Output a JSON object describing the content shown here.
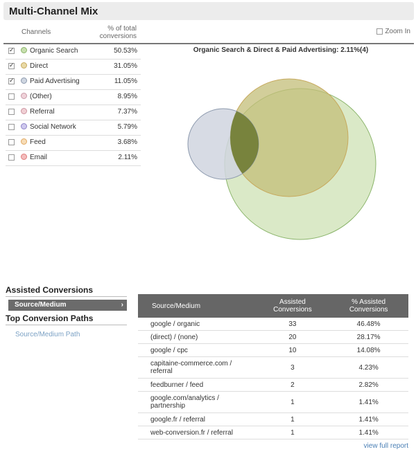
{
  "title": "Multi-Channel Mix",
  "channels_header": {
    "name": "Channels",
    "pct_line1": "% of total",
    "pct_line2": "conversions"
  },
  "zoom_label": "Zoom In",
  "channels": [
    {
      "name": "Organic Search",
      "pct": "50.53%",
      "checked": true,
      "color": "#c8dfae",
      "border": "#8ab46a"
    },
    {
      "name": "Direct",
      "pct": "31.05%",
      "checked": true,
      "color": "#e8d9a6",
      "border": "#c7a95d"
    },
    {
      "name": "Paid Advertising",
      "pct": "11.05%",
      "checked": true,
      "color": "#cfd6e1",
      "border": "#8c99ad"
    },
    {
      "name": "(Other)",
      "pct": "8.95%",
      "checked": false,
      "color": "#efd2d9",
      "border": "#c99aa8"
    },
    {
      "name": "Referral",
      "pct": "7.37%",
      "checked": false,
      "color": "#f0cfd4",
      "border": "#cc94a0"
    },
    {
      "name": "Social Network",
      "pct": "5.79%",
      "checked": false,
      "color": "#cfc9ee",
      "border": "#8f84c8"
    },
    {
      "name": "Feed",
      "pct": "3.68%",
      "checked": false,
      "color": "#f7dcb6",
      "border": "#e0a963"
    },
    {
      "name": "Email",
      "pct": "2.11%",
      "checked": false,
      "color": "#f3bcbc",
      "border": "#e07b7b"
    }
  ],
  "venn_title": "Organic Search & Direct & Paid Advertising: 2.11%(4)",
  "venn_colors": {
    "organic": "#8ab46a",
    "direct": "#c7a95d",
    "paid": "#8c99ad",
    "overlap": "#6e7a2c"
  },
  "assisted_heading": "Assisted Conversions",
  "nav_active": "Source/Medium",
  "paths_heading": "Top Conversion Paths",
  "nav_link": "Source/Medium Path",
  "table": {
    "headers": [
      "Source/Medium",
      "Assisted Conversions",
      "% Assisted Conversions"
    ],
    "rows": [
      {
        "source": "google / organic",
        "assisted": "33",
        "pct": "46.48%"
      },
      {
        "source": "(direct) / (none)",
        "assisted": "20",
        "pct": "28.17%"
      },
      {
        "source": "google / cpc",
        "assisted": "10",
        "pct": "14.08%"
      },
      {
        "source": "capitaine-commerce.com / referral",
        "assisted": "3",
        "pct": "4.23%"
      },
      {
        "source": "feedburner / feed",
        "assisted": "2",
        "pct": "2.82%"
      },
      {
        "source": "google.com/analytics / partnership",
        "assisted": "1",
        "pct": "1.41%"
      },
      {
        "source": "google.fr / referral",
        "assisted": "1",
        "pct": "1.41%"
      },
      {
        "source": "web-conversion.fr / referral",
        "assisted": "1",
        "pct": "1.41%"
      }
    ]
  },
  "view_full_report": "view full report"
}
